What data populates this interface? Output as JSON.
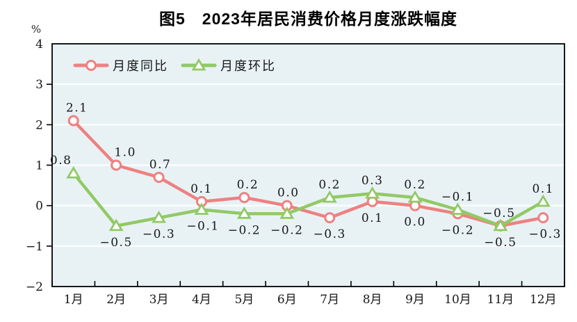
{
  "chart_data": {
    "type": "line",
    "title": "图5　2023年居民消费价格月度涨跌幅度",
    "ylabel": "%",
    "xlabel": "",
    "categories": [
      "1月",
      "2月",
      "3月",
      "4月",
      "5月",
      "6月",
      "7月",
      "8月",
      "9月",
      "10月",
      "11月",
      "12月"
    ],
    "series": [
      {
        "name": "月度同比",
        "color": "#ee8181",
        "marker": "circle",
        "values": [
          2.1,
          1.0,
          0.7,
          0.1,
          0.2,
          0.0,
          -0.3,
          0.1,
          0.0,
          -0.2,
          -0.5,
          -0.3
        ],
        "label_side": [
          "above",
          "above",
          "above",
          "above",
          "above",
          "above",
          "below",
          "below",
          "below",
          "below",
          "below",
          "below"
        ],
        "label_dx": [
          5,
          13,
          2,
          0,
          5,
          2,
          0,
          0,
          0,
          0,
          0,
          3
        ]
      },
      {
        "name": "月度环比",
        "color": "#92c966",
        "marker": "triangle",
        "values": [
          0.8,
          -0.5,
          -0.3,
          -0.1,
          -0.2,
          -0.2,
          0.2,
          0.3,
          0.2,
          -0.1,
          -0.5,
          0.1
        ],
        "label_side": [
          "above",
          "below",
          "below",
          "below",
          "below",
          "below",
          "above",
          "above",
          "above",
          "above",
          "above",
          "above"
        ],
        "label_dx": [
          -18,
          0,
          0,
          2,
          0,
          0,
          0,
          0,
          0,
          0,
          -2,
          0
        ]
      }
    ],
    "ylim": [
      -2,
      4
    ],
    "yticks": [
      4,
      3,
      2,
      1,
      0,
      -1,
      -2
    ],
    "grid": true,
    "legend_position": "top-left",
    "colors": {
      "plot_background": "#e8f2f5",
      "grid": "#ffffff",
      "axis": "#000000",
      "label_text": "#161616"
    }
  }
}
